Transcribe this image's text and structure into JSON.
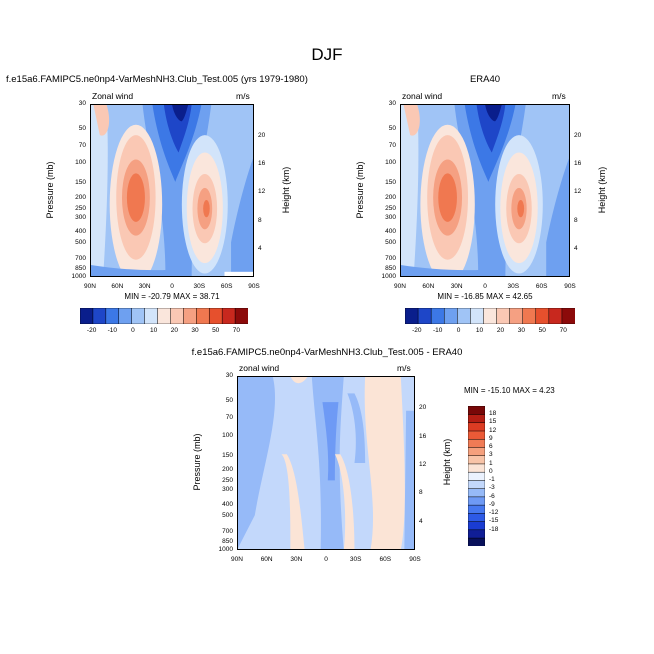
{
  "figure": {
    "title": "DJF",
    "diff_title": "f.e15a6.FAMIPC5.ne0np4-VarMeshNH3.Club_Test.005 - ERA40"
  },
  "colors": {
    "bar1": [
      "#0a1e8c",
      "#1e46c8",
      "#3c78e6",
      "#6ea0f0",
      "#a0c4f6",
      "#d2e4fa",
      "#fae6dc",
      "#fac8b4",
      "#f5a082",
      "#f07850",
      "#e6502d",
      "#c8281e",
      "#8c0a0a"
    ],
    "bar2": [
      "#08105a",
      "#101e96",
      "#1a3cd2",
      "#2d5ae6",
      "#4678f0",
      "#6e9af5",
      "#96baf8",
      "#c3d8fb",
      "#ebf2fe",
      "#fbe4d6",
      "#f8c4a8",
      "#f5a07d",
      "#f07b55",
      "#eb5a37",
      "#dc3c23",
      "#b41e14",
      "#780808"
    ]
  },
  "chart_data": [
    {
      "type": "contour",
      "id": "model",
      "title": "f.e15a6.FAMIPC5.ne0np4-VarMeshNH3.Club_Test.005 (yrs 1979-1980)",
      "left_label": "Zonal wind",
      "right_label": "m/s",
      "ylabel": "Pressure (mb)",
      "y2label": "Height (km)",
      "x_ticks": [
        "90N",
        "60N",
        "30N",
        "0",
        "30S",
        "60S",
        "90S"
      ],
      "y_ticks": [
        "30",
        "50",
        "70",
        "100",
        "150",
        "200",
        "250",
        "300",
        "400",
        "500",
        "700",
        "850",
        "1000"
      ],
      "y2_ticks": [
        "20",
        "16",
        "12",
        "8",
        "4"
      ],
      "min": -20.79,
      "max": 38.71,
      "stats": "MIN = -20.79  MAX = 38.71",
      "colorbar_labels": [
        "-20",
        "-10",
        "0",
        "10",
        "20",
        "30",
        "50",
        "70"
      ],
      "features": [
        {
          "kind": "westerly jet",
          "lat": 30,
          "pressure": 200,
          "value": 38.71
        },
        {
          "kind": "westerly jet",
          "lat": -50,
          "pressure": 250,
          "value": 30
        },
        {
          "kind": "easterlies",
          "lat": 5,
          "pressure": 30,
          "value": -20.79
        }
      ]
    },
    {
      "type": "contour",
      "id": "obs",
      "title": "ERA40",
      "left_label": "zonal wind",
      "right_label": "m/s",
      "ylabel": "Pressure (mb)",
      "y2label": "Height (km)",
      "x_ticks": [
        "90N",
        "60N",
        "30N",
        "0",
        "30S",
        "60S",
        "90S"
      ],
      "y_ticks": [
        "30",
        "50",
        "70",
        "100",
        "150",
        "200",
        "250",
        "300",
        "400",
        "500",
        "700",
        "850",
        "1000"
      ],
      "y2_ticks": [
        "20",
        "16",
        "12",
        "8",
        "4"
      ],
      "min": -16.85,
      "max": 42.65,
      "stats": "MIN = -16.85  MAX = 42.65",
      "colorbar_labels": [
        "-20",
        "-10",
        "0",
        "10",
        "20",
        "30",
        "50",
        "70"
      ],
      "features": [
        {
          "kind": "westerly jet",
          "lat": 30,
          "pressure": 200,
          "value": 42.65
        },
        {
          "kind": "westerly jet",
          "lat": -48,
          "pressure": 250,
          "value": 32
        },
        {
          "kind": "easterlies",
          "lat": 8,
          "pressure": 30,
          "value": -16.85
        }
      ]
    },
    {
      "type": "contour",
      "id": "diff",
      "title": "f.e15a6.FAMIPC5.ne0np4-VarMeshNH3.Club_Test.005 - ERA40",
      "left_label": "zonal wind",
      "right_label": "m/s",
      "ylabel": "Pressure (mb)",
      "y2label": "Height (km)",
      "x_ticks": [
        "90N",
        "60N",
        "30N",
        "0",
        "30S",
        "60S",
        "90S"
      ],
      "y_ticks": [
        "30",
        "50",
        "70",
        "100",
        "150",
        "200",
        "250",
        "300",
        "400",
        "500",
        "700",
        "850",
        "1000"
      ],
      "y2_ticks": [
        "20",
        "16",
        "12",
        "8",
        "4"
      ],
      "min": -15.1,
      "max": 4.23,
      "stats": "MIN = -15.10  MAX =   4.23",
      "colorbar_labels": [
        "18",
        "15",
        "12",
        "9",
        "6",
        "3",
        "1",
        "0",
        "-1",
        "-3",
        "-6",
        "-9",
        "-12",
        "-15",
        "-18"
      ]
    }
  ]
}
